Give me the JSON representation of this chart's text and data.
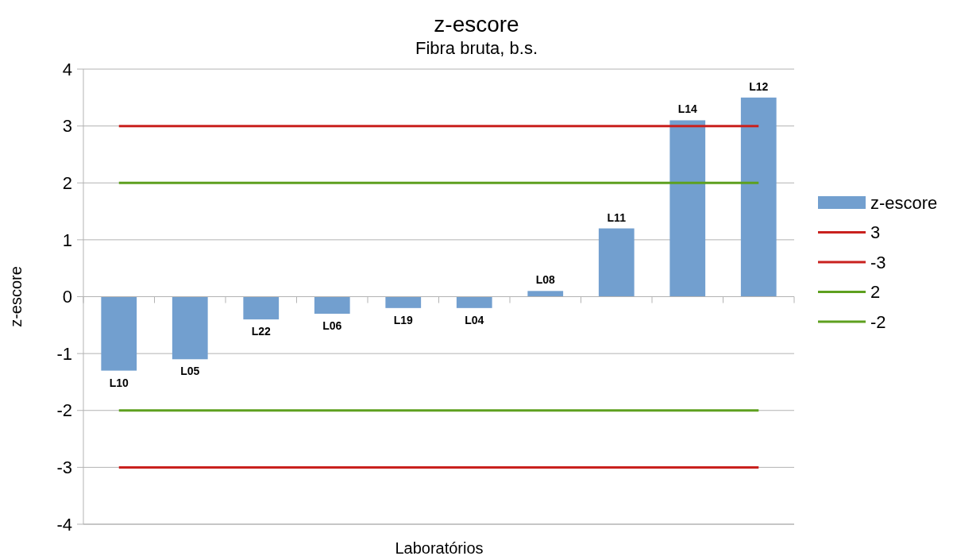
{
  "chart_data": {
    "type": "bar",
    "title": "z-escore",
    "subtitle": "Fibra bruta, b.s.",
    "xlabel": "Laboratórios",
    "ylabel": "z-escore",
    "categories": [
      "L10",
      "L05",
      "L22",
      "L06",
      "L19",
      "L04",
      "L08",
      "L11",
      "L14",
      "L12"
    ],
    "series": [
      {
        "name": "z-escore",
        "color": "#729fcf",
        "values": [
          -1.3,
          -1.1,
          -0.4,
          -0.3,
          -0.2,
          -0.2,
          0.1,
          1.2,
          3.1,
          3.5
        ]
      },
      {
        "name": "3",
        "type": "line",
        "color": "#c9211e",
        "values": [
          3,
          3,
          3,
          3,
          3,
          3,
          3,
          3,
          3,
          3
        ]
      },
      {
        "name": "-3",
        "type": "line",
        "color": "#c9211e",
        "values": [
          -3,
          -3,
          -3,
          -3,
          -3,
          -3,
          -3,
          -3,
          -3,
          -3
        ]
      },
      {
        "name": "2",
        "type": "line",
        "color": "#5ea01f",
        "values": [
          2,
          2,
          2,
          2,
          2,
          2,
          2,
          2,
          2,
          2
        ]
      },
      {
        "name": "-2",
        "type": "line",
        "color": "#5ea01f",
        "values": [
          -2,
          -2,
          -2,
          -2,
          -2,
          -2,
          -2,
          -2,
          -2,
          -2
        ]
      }
    ],
    "ylim": [
      -4,
      4
    ],
    "yticks": [
      -4,
      -3,
      -2,
      -1,
      0,
      1,
      2,
      3,
      4
    ],
    "grid": "y",
    "legend": "right",
    "marker": "none",
    "line_style": "solid"
  }
}
